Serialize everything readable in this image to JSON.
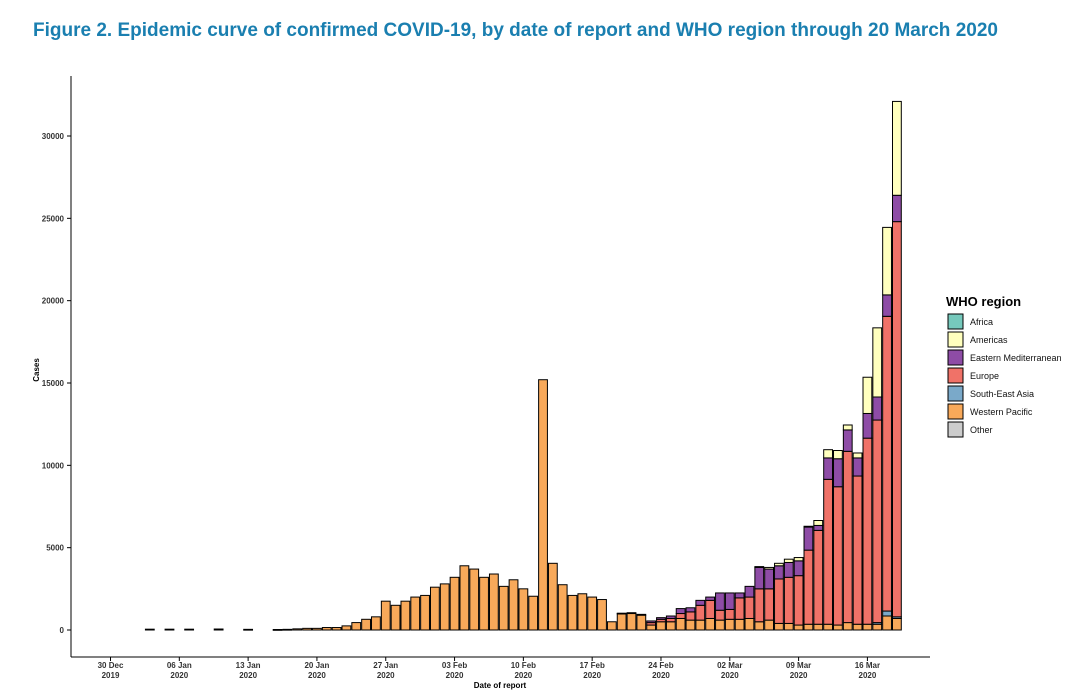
{
  "figure": {
    "title": "Figure 2. Epidemic curve of confirmed COVID-19, by date of report and WHO region through 20 March 2020"
  },
  "chart_data": {
    "type": "bar",
    "stacked": true,
    "title": "Figure 2. Epidemic curve of confirmed COVID-19, by date of report and WHO region through 20 March 2020",
    "xlabel": "Date of report",
    "ylabel": "Cases",
    "ylim": [
      -1500,
      33000
    ],
    "yticks": [
      0,
      5000,
      10000,
      15000,
      20000,
      25000,
      30000
    ],
    "grid": false,
    "legend_position": "right",
    "legend_title": "WHO region",
    "x_start": "2019-12-30",
    "x_end": "2020-03-20",
    "xticks": [
      {
        "line1": "30 Dec",
        "line2": "2019",
        "day": 0
      },
      {
        "line1": "06 Jan",
        "line2": "2020",
        "day": 7
      },
      {
        "line1": "13 Jan",
        "line2": "2020",
        "day": 14
      },
      {
        "line1": "20 Jan",
        "line2": "2020",
        "day": 21
      },
      {
        "line1": "27 Jan",
        "line2": "2020",
        "day": 28
      },
      {
        "line1": "03 Feb",
        "line2": "2020",
        "day": 35
      },
      {
        "line1": "10 Feb",
        "line2": "2020",
        "day": 42
      },
      {
        "line1": "17 Feb",
        "line2": "2020",
        "day": 49
      },
      {
        "line1": "24 Feb",
        "line2": "2020",
        "day": 56
      },
      {
        "line1": "02 Mar",
        "line2": "2020",
        "day": 63
      },
      {
        "line1": "09 Mar",
        "line2": "2020",
        "day": 70
      },
      {
        "line1": "16 Mar",
        "line2": "2020",
        "day": 77
      }
    ],
    "series": [
      {
        "name": "Africa",
        "color": "#76c9bc"
      },
      {
        "name": "Americas",
        "color": "#ffffbe"
      },
      {
        "name": "Eastern Mediterranean",
        "color": "#8e4ca6"
      },
      {
        "name": "Europe",
        "color": "#f07268"
      },
      {
        "name": "South-East Asia",
        "color": "#7aa9c9"
      },
      {
        "name": "Western Pacific",
        "color": "#f8a95a"
      },
      {
        "name": "Other",
        "color": "#cccccc"
      }
    ],
    "bars": [
      {
        "day": 4,
        "wp": 50
      },
      {
        "day": 6,
        "wp": 50
      },
      {
        "day": 8,
        "wp": 50
      },
      {
        "day": 11,
        "wp": 60
      },
      {
        "day": 14,
        "wp": 40
      },
      {
        "day": 17,
        "wp": 30
      },
      {
        "day": 18,
        "wp": 40
      },
      {
        "day": 19,
        "wp": 70
      },
      {
        "day": 20,
        "wp": 100
      },
      {
        "day": 21,
        "wp": 100
      },
      {
        "day": 22,
        "wp": 150
      },
      {
        "day": 23,
        "wp": 150
      },
      {
        "day": 24,
        "wp": 250
      },
      {
        "day": 25,
        "wp": 450
      },
      {
        "day": 26,
        "wp": 650
      },
      {
        "day": 27,
        "wp": 800
      },
      {
        "day": 28,
        "wp": 1750
      },
      {
        "day": 29,
        "wp": 1500
      },
      {
        "day": 30,
        "wp": 1750
      },
      {
        "day": 31,
        "wp": 2000
      },
      {
        "day": 32,
        "wp": 2100
      },
      {
        "day": 33,
        "wp": 2600
      },
      {
        "day": 34,
        "wp": 2800
      },
      {
        "day": 35,
        "wp": 3200
      },
      {
        "day": 36,
        "wp": 3900
      },
      {
        "day": 37,
        "wp": 3700
      },
      {
        "day": 38,
        "wp": 3200
      },
      {
        "day": 39,
        "wp": 3400
      },
      {
        "day": 40,
        "wp": 2650
      },
      {
        "day": 41,
        "wp": 3050
      },
      {
        "day": 42,
        "wp": 2500
      },
      {
        "day": 43,
        "wp": 2050
      },
      {
        "day": 44,
        "wp": 15200
      },
      {
        "day": 45,
        "wp": 4050
      },
      {
        "day": 46,
        "wp": 2750
      },
      {
        "day": 47,
        "wp": 2100
      },
      {
        "day": 48,
        "wp": 2200
      },
      {
        "day": 49,
        "wp": 2000
      },
      {
        "day": 50,
        "wp": 1850
      },
      {
        "day": 51,
        "wp": 500
      },
      {
        "day": 52,
        "wp": 1000,
        "eu": 20
      },
      {
        "day": 53,
        "wp": 1000,
        "eu": 50
      },
      {
        "day": 54,
        "wp": 900,
        "eu": 50
      },
      {
        "day": 55,
        "wp": 300,
        "eu": 150,
        "em": 100
      },
      {
        "day": 56,
        "wp": 500,
        "eu": 150,
        "em": 100
      },
      {
        "day": 57,
        "wp": 500,
        "eu": 200,
        "em": 150
      },
      {
        "day": 58,
        "wp": 700,
        "eu": 300,
        "em": 300
      },
      {
        "day": 59,
        "wp": 600,
        "eu": 500,
        "em": 250
      },
      {
        "day": 60,
        "wp": 600,
        "eu": 900,
        "em": 300
      },
      {
        "day": 61,
        "wp": 700,
        "eu": 1100,
        "em": 200
      },
      {
        "day": 62,
        "wp": 600,
        "eu": 600,
        "em": 1050
      },
      {
        "day": 63,
        "wp": 650,
        "eu": 600,
        "em": 1000
      },
      {
        "day": 64,
        "wp": 650,
        "eu": 1300,
        "em": 300
      },
      {
        "day": 65,
        "wp": 700,
        "eu": 1300,
        "em": 650
      },
      {
        "day": 66,
        "wp": 500,
        "eu": 2000,
        "em": 1300,
        "am": 50
      },
      {
        "day": 67,
        "wp": 600,
        "eu": 1900,
        "em": 1200,
        "am": 100
      },
      {
        "day": 68,
        "wp": 400,
        "eu": 2700,
        "em": 800,
        "am": 150
      },
      {
        "day": 69,
        "wp": 400,
        "eu": 2800,
        "em": 900,
        "am": 200
      },
      {
        "day": 70,
        "wp": 300,
        "eu": 3000,
        "em": 900,
        "am": 200
      },
      {
        "day": 71,
        "wp": 350,
        "eu": 4500,
        "em": 1400,
        "am": 50
      },
      {
        "day": 72,
        "wp": 350,
        "eu": 5700,
        "em": 300,
        "am": 300
      },
      {
        "day": 73,
        "wp": 350,
        "eu": 8800,
        "em": 1300,
        "am": 500
      },
      {
        "day": 74,
        "wp": 300,
        "eu": 8400,
        "em": 1700,
        "am": 500
      },
      {
        "day": 75,
        "wp": 450,
        "eu": 10400,
        "em": 1300,
        "am": 300
      },
      {
        "day": 76,
        "wp": 350,
        "eu": 9000,
        "em": 1100,
        "am": 300
      },
      {
        "day": 77,
        "wp": 350,
        "eu": 11300,
        "em": 1500,
        "am": 2200
      },
      {
        "day": 78,
        "wp": 350,
        "eu": 12300,
        "em": 1400,
        "am": 4200,
        "sea": 100
      },
      {
        "day": 79,
        "wp": 850,
        "eu": 17900,
        "em": 1300,
        "am": 4100,
        "sea": 300
      },
      {
        "day": 80,
        "wp": 700,
        "eu": 24000,
        "em": 1600,
        "am": 5700,
        "sea": 100
      }
    ]
  }
}
